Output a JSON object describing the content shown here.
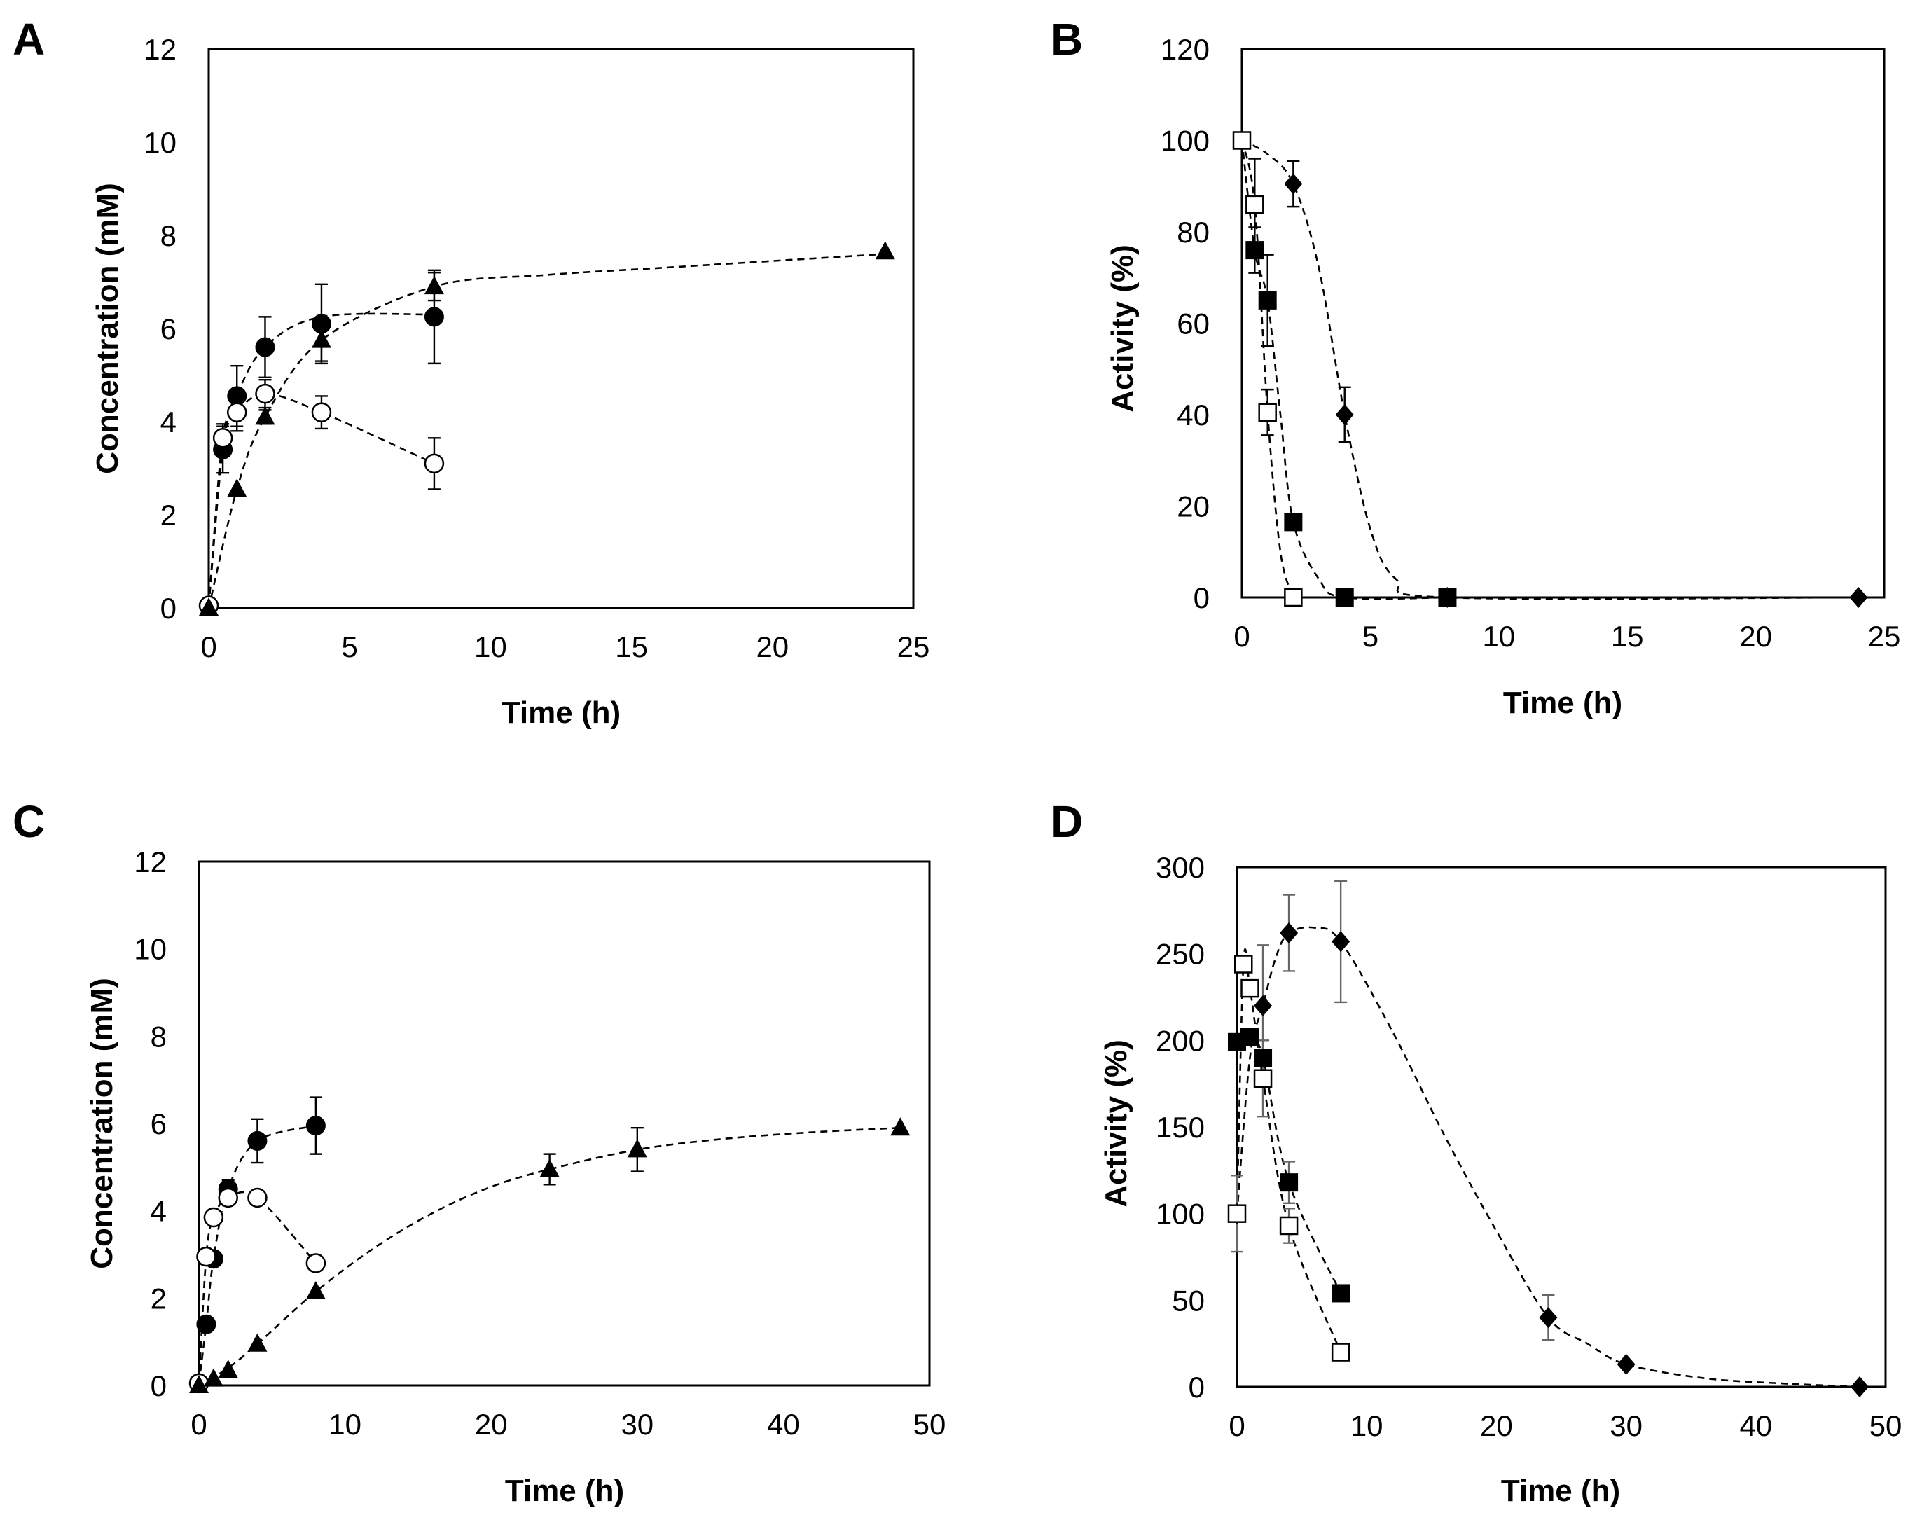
{
  "figure": {
    "panel_letters": [
      "A",
      "B",
      "C",
      "D"
    ]
  },
  "chart_data": [
    {
      "panel": "A",
      "type": "scatter",
      "xlabel": "Time (h)",
      "ylabel": "Concentration (mM)",
      "xlim": [
        0,
        25
      ],
      "ylim": [
        0,
        12
      ],
      "xticks": [
        0,
        5,
        10,
        15,
        20,
        25
      ],
      "yticks": [
        0,
        2,
        4,
        6,
        8,
        10,
        12
      ],
      "series": [
        {
          "name": "filled circles",
          "marker": "circle-filled",
          "x": [
            0,
            0.5,
            1,
            2,
            4,
            8
          ],
          "y": [
            0.05,
            3.4,
            4.55,
            5.6,
            6.1,
            6.25
          ],
          "err": [
            0,
            0.5,
            0.65,
            0.65,
            0.85,
            1.0
          ],
          "curve": {
            "x": [
              0,
              0.5,
              1,
              2,
              4,
              8
            ],
            "y": [
              0.05,
              3.4,
              4.55,
              5.6,
              6.25,
              6.3
            ]
          }
        },
        {
          "name": "open circles",
          "marker": "circle-open",
          "x": [
            0,
            0.5,
            1,
            2,
            4,
            8
          ],
          "y": [
            0.05,
            3.65,
            4.2,
            4.6,
            4.2,
            3.1
          ],
          "err": [
            0,
            0.3,
            0.4,
            0.3,
            0.35,
            0.55
          ],
          "curve": {
            "x": [
              0,
              0.5,
              1,
              2,
              4,
              8
            ],
            "y": [
              0.05,
              3.65,
              4.2,
              4.6,
              4.2,
              3.1
            ]
          }
        },
        {
          "name": "filled triangles",
          "marker": "triangle-filled",
          "x": [
            0,
            1,
            2,
            4,
            8,
            24
          ],
          "y": [
            0.0,
            2.55,
            4.1,
            5.75,
            6.9,
            7.65
          ],
          "err": [
            0,
            0,
            0.15,
            0.45,
            0.3,
            0
          ],
          "curve": {
            "x": [
              0,
              1,
              2,
              4,
              8,
              12,
              16,
              20,
              24
            ],
            "y": [
              0.0,
              2.55,
              4.1,
              5.75,
              6.9,
              7.15,
              7.3,
              7.45,
              7.6
            ]
          }
        }
      ]
    },
    {
      "panel": "B",
      "type": "scatter",
      "xlabel": "Time (h)",
      "ylabel": "Activity (%)",
      "xlim": [
        0,
        25
      ],
      "ylim": [
        0,
        120
      ],
      "xticks": [
        0,
        5,
        10,
        15,
        20,
        25
      ],
      "yticks": [
        0,
        20,
        40,
        60,
        80,
        100,
        120
      ],
      "series": [
        {
          "name": "filled diamonds",
          "marker": "diamond-filled",
          "x": [
            0,
            2,
            4,
            8,
            24
          ],
          "y": [
            100,
            90.5,
            40,
            0,
            0
          ],
          "err": [
            0,
            5,
            6,
            0,
            0
          ],
          "curve": {
            "x": [
              0,
              1,
              2,
              3,
              4,
              5,
              6,
              8,
              24
            ],
            "y": [
              100,
              97,
              90.5,
              72,
              40,
              15,
              4,
              0,
              0
            ]
          }
        },
        {
          "name": "filled squares",
          "marker": "square-filled",
          "x": [
            0,
            0.5,
            1,
            2,
            4,
            8
          ],
          "y": [
            100,
            76,
            65,
            16.5,
            0,
            0
          ],
          "err": [
            0,
            5,
            10,
            0,
            0,
            0
          ],
          "curve": {
            "x": [
              0,
              0.5,
              1,
              1.5,
              2,
              3,
              4,
              8
            ],
            "y": [
              100,
              76,
              65,
              40,
              16.5,
              4,
              0,
              0
            ]
          }
        },
        {
          "name": "open squares",
          "marker": "square-open",
          "x": [
            0,
            0.5,
            1,
            2
          ],
          "y": [
            100,
            86,
            40.5,
            0
          ],
          "err": [
            0,
            10,
            5,
            0
          ],
          "curve": {
            "x": [
              0,
              0.5,
              1,
              1.5,
              2
            ],
            "y": [
              100,
              86,
              40.5,
              10,
              0
            ]
          }
        }
      ]
    },
    {
      "panel": "C",
      "type": "scatter",
      "xlabel": "Time (h)",
      "ylabel": "Concentration (mM)",
      "xlim": [
        0,
        50
      ],
      "ylim": [
        0,
        12
      ],
      "xticks": [
        0,
        10,
        20,
        30,
        40,
        50
      ],
      "yticks": [
        0,
        2,
        4,
        6,
        8,
        10,
        12
      ],
      "series": [
        {
          "name": "filled circles",
          "marker": "circle-filled",
          "x": [
            0,
            0.5,
            1,
            2,
            4,
            8
          ],
          "y": [
            0.05,
            1.4,
            2.9,
            4.5,
            5.6,
            5.95
          ],
          "err": [
            0,
            0,
            0,
            0.2,
            0.5,
            0.65
          ],
          "curve": {
            "x": [
              0,
              0.5,
              1,
              2,
              4,
              8
            ],
            "y": [
              0.05,
              1.4,
              2.9,
              4.5,
              5.6,
              5.95
            ]
          }
        },
        {
          "name": "open circles",
          "marker": "circle-open",
          "x": [
            0,
            0.5,
            1,
            2,
            4,
            8
          ],
          "y": [
            0.05,
            2.95,
            3.85,
            4.3,
            4.3,
            2.8
          ],
          "err": [
            0,
            0,
            0,
            0,
            0,
            0
          ],
          "curve": {
            "x": [
              0,
              0.5,
              1,
              2,
              4,
              8
            ],
            "y": [
              0.05,
              2.95,
              3.85,
              4.3,
              4.3,
              2.8
            ]
          }
        },
        {
          "name": "filled triangles",
          "marker": "triangle-filled",
          "x": [
            0,
            1,
            2,
            4,
            8,
            24,
            30,
            48
          ],
          "y": [
            0.0,
            0.15,
            0.35,
            0.95,
            2.15,
            4.95,
            5.4,
            5.9
          ],
          "err": [
            0,
            0,
            0,
            0,
            0,
            0.35,
            0.5,
            0
          ],
          "curve": {
            "x": [
              0,
              2,
              4,
              8,
              12,
              16,
              20,
              24,
              30,
              36,
              42,
              48
            ],
            "y": [
              0.0,
              0.4,
              0.95,
              2.15,
              3.15,
              3.95,
              4.55,
              4.95,
              5.4,
              5.65,
              5.8,
              5.9
            ]
          }
        }
      ]
    },
    {
      "panel": "D",
      "type": "scatter",
      "xlabel": "Time (h)",
      "ylabel": "Activity (%)",
      "xlim": [
        0,
        50
      ],
      "ylim": [
        0,
        300
      ],
      "xticks": [
        0,
        10,
        20,
        30,
        40,
        50
      ],
      "yticks": [
        0,
        50,
        100,
        150,
        200,
        250,
        300
      ],
      "series": [
        {
          "name": "filled diamonds",
          "marker": "diamond-filled",
          "x": [
            0,
            2,
            4,
            8,
            24,
            30,
            48
          ],
          "y": [
            100,
            220,
            262,
            257,
            40,
            13,
            0
          ],
          "err": [
            0,
            35,
            22,
            35,
            13,
            0,
            0
          ],
          "curve": {
            "x": [
              0,
              1,
              2,
              3,
              4,
              6,
              8,
              12,
              16,
              20,
              24,
              27,
              30,
              36,
              42,
              48
            ],
            "y": [
              100,
              190,
              220,
              248,
              262,
              265,
              257,
              205,
              145,
              90,
              40,
              25,
              13,
              5,
              2,
              0
            ]
          }
        },
        {
          "name": "filled squares",
          "marker": "square-filled",
          "x": [
            0,
            1,
            2,
            4,
            8
          ],
          "y": [
            199,
            202,
            190,
            118,
            54
          ],
          "err": [
            0,
            0,
            0,
            12,
            0
          ],
          "curve": {
            "x": [
              0,
              1,
              2,
              4,
              8
            ],
            "y": [
              199,
              202,
              190,
              118,
              54
            ]
          }
        },
        {
          "name": "open squares",
          "marker": "square-open",
          "x": [
            0,
            0.5,
            1,
            2,
            4,
            8
          ],
          "y": [
            100,
            244,
            230,
            178,
            93,
            20
          ],
          "err": [
            22,
            0,
            0,
            22,
            10,
            0
          ],
          "curve": {
            "x": [
              0,
              0.5,
              1,
              2,
              4,
              8
            ],
            "y": [
              100,
              244,
              230,
              178,
              93,
              20
            ]
          }
        }
      ]
    }
  ]
}
